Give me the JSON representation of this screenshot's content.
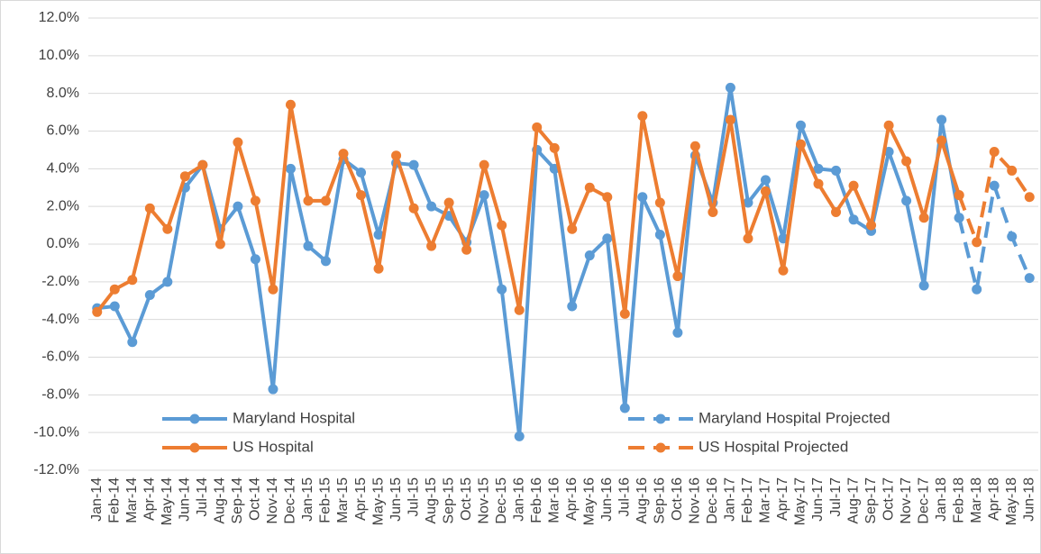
{
  "chart_data": {
    "type": "line",
    "categories": [
      "Jan-14",
      "Feb-14",
      "Mar-14",
      "Apr-14",
      "May-14",
      "Jun-14",
      "Jul-14",
      "Aug-14",
      "Sep-14",
      "Oct-14",
      "Nov-14",
      "Dec-14",
      "Jan-15",
      "Feb-15",
      "Mar-15",
      "Apr-15",
      "May-15",
      "Jun-15",
      "Jul-15",
      "Aug-15",
      "Sep-15",
      "Oct-15",
      "Nov-15",
      "Dec-15",
      "Jan-16",
      "Feb-16",
      "Mar-16",
      "Apr-16",
      "May-16",
      "Jun-16",
      "Jul-16",
      "Aug-16",
      "Sep-16",
      "Oct-16",
      "Nov-16",
      "Dec-16",
      "Jan-17",
      "Feb-17",
      "Mar-17",
      "Apr-17",
      "May-17",
      "Jun-17",
      "Jul-17",
      "Aug-17",
      "Sep-17",
      "Oct-17",
      "Nov-17",
      "Dec-17",
      "Jan-18",
      "Feb-18",
      "Mar-18",
      "Apr-18",
      "May-18",
      "Jun-18"
    ],
    "series": [
      {
        "name": "Maryland Hospital",
        "color": "#5B9BD5",
        "dashed": false,
        "values": [
          -3.4,
          -3.3,
          -5.2,
          -2.7,
          -2.0,
          3.0,
          4.2,
          0.8,
          2.0,
          -0.8,
          -7.7,
          4.0,
          -0.1,
          -0.9,
          4.5,
          3.8,
          0.5,
          4.3,
          4.2,
          2.0,
          1.5,
          0.1,
          2.6,
          -2.4,
          -10.2,
          5.0,
          4.0,
          -3.3,
          -0.6,
          0.3,
          -8.7,
          2.5,
          0.5,
          -4.7,
          4.7,
          2.2,
          8.3,
          2.2,
          3.4,
          0.3,
          6.3,
          4.0,
          3.9,
          1.3,
          0.7,
          4.9,
          2.3,
          -2.2,
          6.6,
          1.4,
          null,
          null,
          null,
          null
        ]
      },
      {
        "name": "US Hospital",
        "color": "#ED7D31",
        "dashed": false,
        "values": [
          -3.6,
          -2.4,
          -1.9,
          1.9,
          0.8,
          3.6,
          4.2,
          0.0,
          5.4,
          2.3,
          -2.4,
          7.4,
          2.3,
          2.3,
          4.8,
          2.6,
          -1.3,
          4.7,
          1.9,
          -0.1,
          2.2,
          -0.3,
          4.2,
          1.0,
          -3.5,
          6.2,
          5.1,
          0.8,
          3.0,
          2.5,
          -3.7,
          6.8,
          2.2,
          -1.7,
          5.2,
          1.7,
          6.6,
          0.3,
          2.8,
          -1.4,
          5.3,
          3.2,
          1.7,
          3.1,
          1.0,
          6.3,
          4.4,
          1.4,
          5.5,
          2.6,
          null,
          null,
          null,
          null
        ]
      },
      {
        "name": "Maryland Hospital Projected",
        "color": "#5B9BD5",
        "dashed": true,
        "values": [
          null,
          null,
          null,
          null,
          null,
          null,
          null,
          null,
          null,
          null,
          null,
          null,
          null,
          null,
          null,
          null,
          null,
          null,
          null,
          null,
          null,
          null,
          null,
          null,
          null,
          null,
          null,
          null,
          null,
          null,
          null,
          null,
          null,
          null,
          null,
          null,
          null,
          null,
          null,
          null,
          null,
          null,
          null,
          null,
          null,
          null,
          null,
          null,
          null,
          1.4,
          -2.4,
          3.1,
          0.4,
          -1.8
        ]
      },
      {
        "name": "US Hospital Projected",
        "color": "#ED7D31",
        "dashed": true,
        "values": [
          null,
          null,
          null,
          null,
          null,
          null,
          null,
          null,
          null,
          null,
          null,
          null,
          null,
          null,
          null,
          null,
          null,
          null,
          null,
          null,
          null,
          null,
          null,
          null,
          null,
          null,
          null,
          null,
          null,
          null,
          null,
          null,
          null,
          null,
          null,
          null,
          null,
          null,
          null,
          null,
          null,
          null,
          null,
          null,
          null,
          null,
          null,
          null,
          null,
          2.6,
          0.1,
          4.9,
          3.9,
          2.5
        ]
      }
    ],
    "ylim": [
      -12,
      12
    ],
    "yticks": [
      {
        "value": -12,
        "label": "-12.0%"
      },
      {
        "value": -10,
        "label": "-10.0%"
      },
      {
        "value": -8,
        "label": "-8.0%"
      },
      {
        "value": -6,
        "label": "-6.0%"
      },
      {
        "value": -4,
        "label": "-4.0%"
      },
      {
        "value": -2,
        "label": "-2.0%"
      },
      {
        "value": 0,
        "label": "0.0%"
      },
      {
        "value": 2,
        "label": "2.0%"
      },
      {
        "value": 4,
        "label": "4.0%"
      },
      {
        "value": 6,
        "label": "6.0%"
      },
      {
        "value": 8,
        "label": "8.0%"
      },
      {
        "value": 10,
        "label": "10.0%"
      },
      {
        "value": 12,
        "label": "12.0%"
      }
    ],
    "grid": true
  }
}
